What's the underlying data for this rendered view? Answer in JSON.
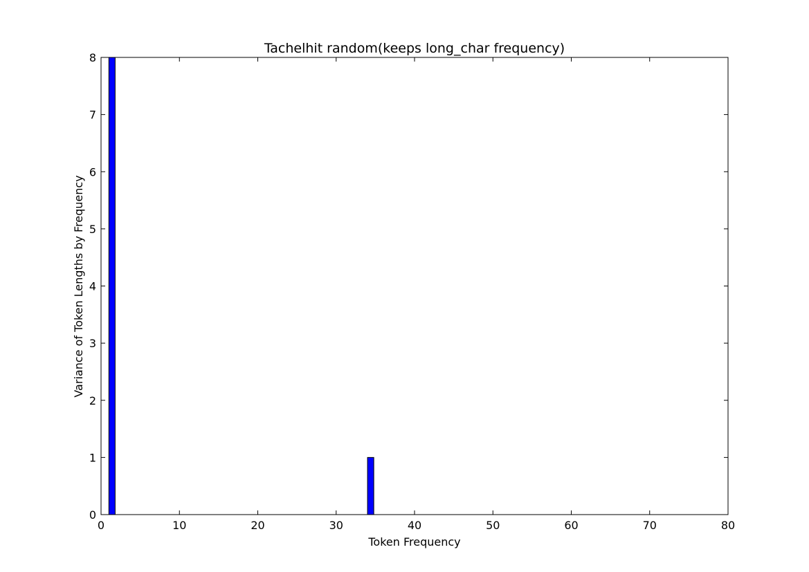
{
  "chart_data": {
    "type": "bar",
    "title": "Tachelhit random(keeps long_char frequency)",
    "xlabel": "Token Frequency",
    "ylabel": "Variance of Token Lengths by Frequency",
    "xlim": [
      0,
      80
    ],
    "ylim": [
      0,
      8
    ],
    "xticks": [
      0,
      10,
      20,
      30,
      40,
      50,
      60,
      70,
      80
    ],
    "yticks": [
      0,
      1,
      2,
      3,
      4,
      5,
      6,
      7,
      8
    ],
    "grid": false,
    "bar_width": 0.8,
    "bar_color": "#0000ff",
    "edge_color": "#000000",
    "series": [
      {
        "x": [
          1,
          2,
          3,
          4,
          5,
          6,
          7,
          8,
          9,
          10,
          11,
          12,
          13,
          14,
          15,
          16,
          17,
          18,
          19,
          20,
          21,
          22,
          23,
          24,
          25,
          26,
          27,
          28,
          29,
          30,
          31,
          32,
          34,
          37,
          38,
          39,
          40,
          41,
          51,
          52,
          75
        ],
        "values": [
          8,
          0,
          0,
          0,
          0,
          0,
          0,
          0,
          0,
          0,
          0,
          0,
          0,
          0,
          0,
          0,
          0,
          0,
          0,
          0,
          0,
          0,
          0,
          0,
          0,
          0,
          0,
          0,
          0,
          0,
          0,
          0,
          1,
          0,
          0,
          0,
          0,
          0,
          0,
          0,
          0
        ]
      }
    ]
  }
}
